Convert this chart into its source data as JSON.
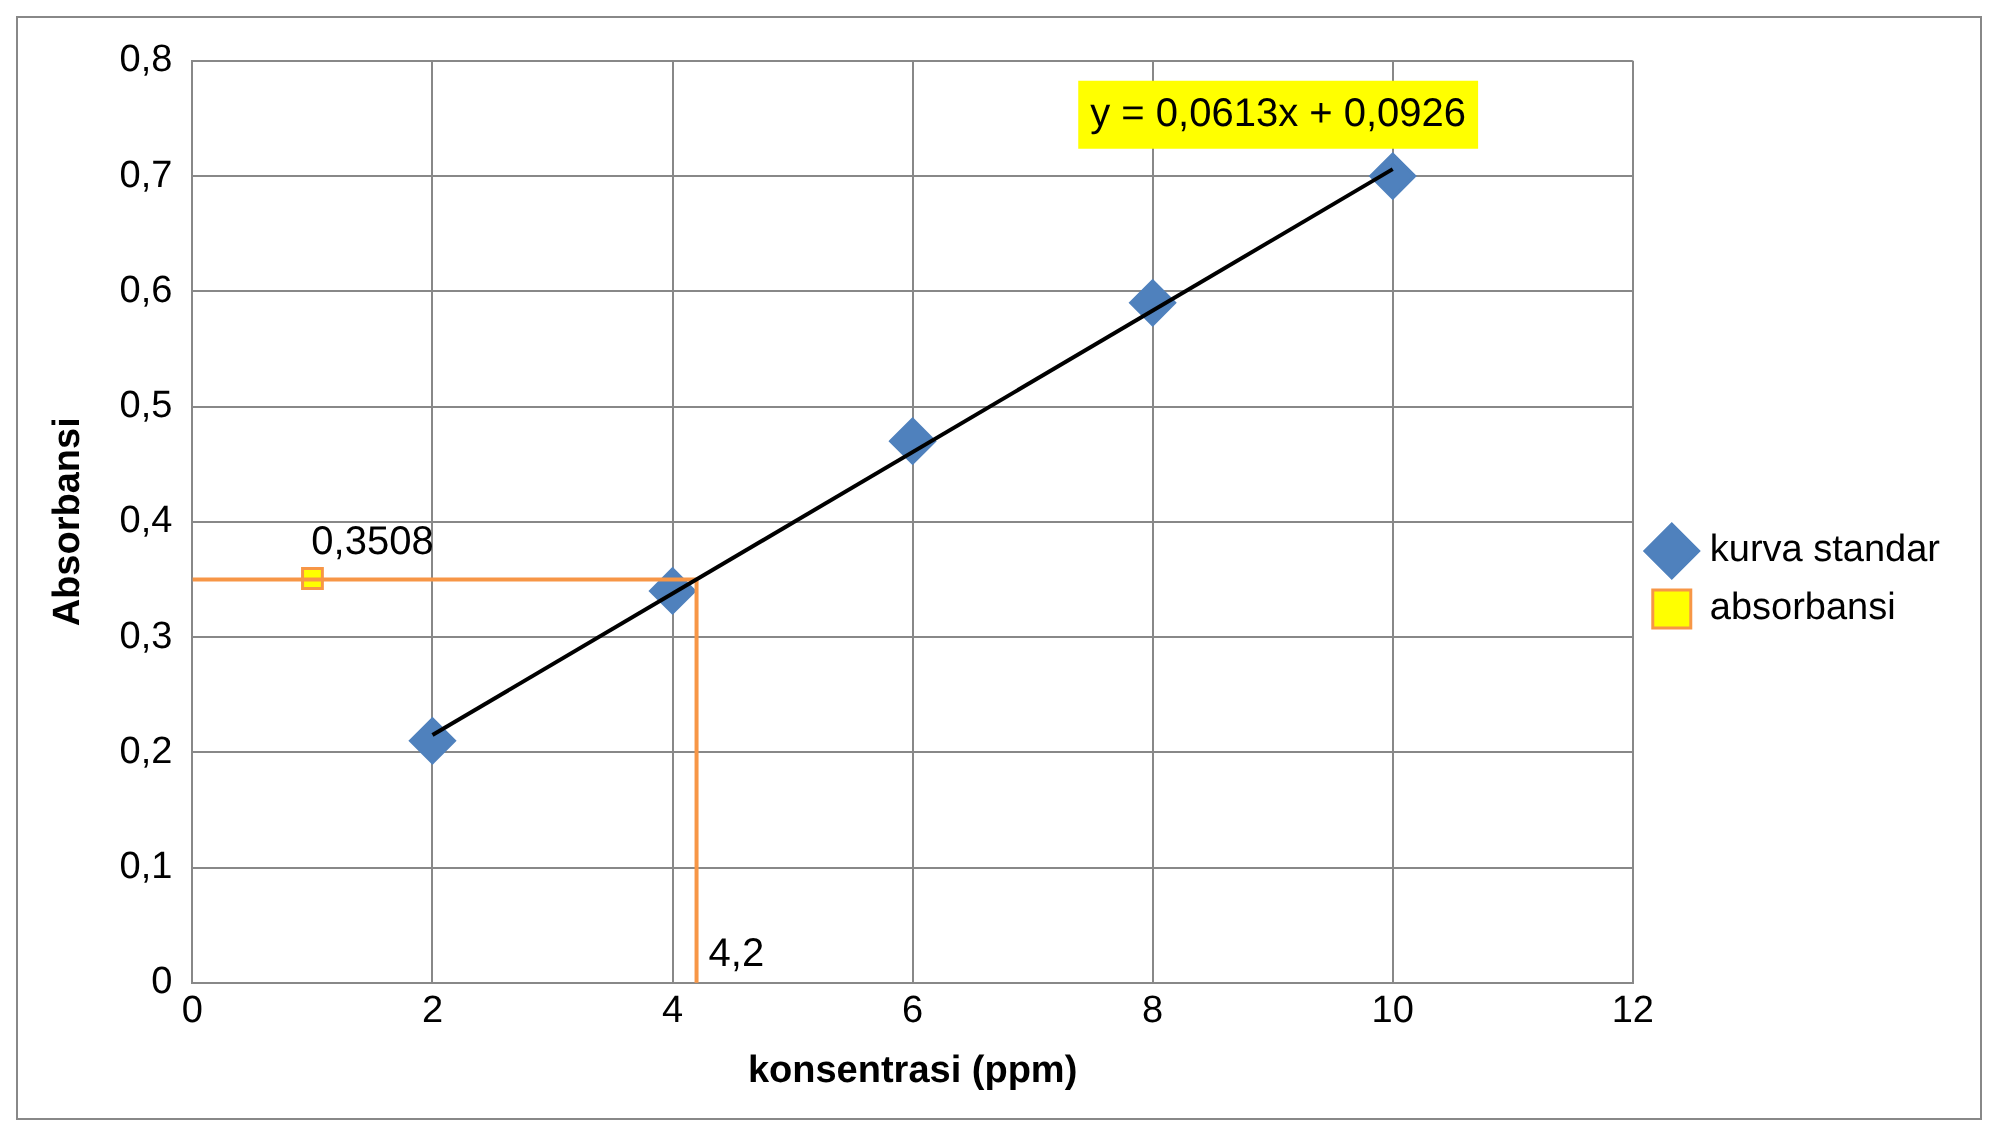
{
  "chart_data": {
    "type": "scatter",
    "xlabel": "konsentrasi (ppm)",
    "ylabel": "Absorbansi",
    "xlim": [
      0,
      12
    ],
    "xticks": [
      0,
      2,
      4,
      6,
      8,
      10,
      12
    ],
    "ylim": [
      0,
      0.8
    ],
    "yticks": [
      {
        "value": 0,
        "label": "0"
      },
      {
        "value": 0.1,
        "label": "0,1"
      },
      {
        "value": 0.2,
        "label": "0,2"
      },
      {
        "value": 0.3,
        "label": "0,3"
      },
      {
        "value": 0.4,
        "label": "0,4"
      },
      {
        "value": 0.5,
        "label": "0,5"
      },
      {
        "value": 0.6,
        "label": "0,6"
      },
      {
        "value": 0.7,
        "label": "0,7"
      },
      {
        "value": 0.8,
        "label": "0,8"
      }
    ],
    "grid": true,
    "legend": "right",
    "annotations": [
      "y = 0,0613x + 0,0926",
      {
        "text": "4,2",
        "x": 4.2,
        "y": 0
      }
    ],
    "series": [
      {
        "name": "kurva standar",
        "marker": "diamond",
        "color": "#4f81bd",
        "x": [
          2,
          4,
          6,
          8,
          10
        ],
        "values": [
          0.21,
          0.34,
          0.47,
          0.59,
          0.7
        ]
      },
      {
        "name": "absorbansi",
        "marker": "square",
        "color": "#ffff00",
        "x": [
          1
        ],
        "values": [
          0.3508
        ],
        "value_labels": [
          "0,3508"
        ]
      },
      {
        "type": "line",
        "marker": "none",
        "color": "#000000",
        "x": [
          2,
          10
        ],
        "values": [
          0.215,
          0.706
        ]
      },
      {
        "type": "line",
        "marker": "none",
        "color": "#f79646",
        "x": [
          0,
          4.2,
          4.2
        ],
        "values": [
          0.35,
          0.35,
          0
        ]
      }
    ]
  }
}
